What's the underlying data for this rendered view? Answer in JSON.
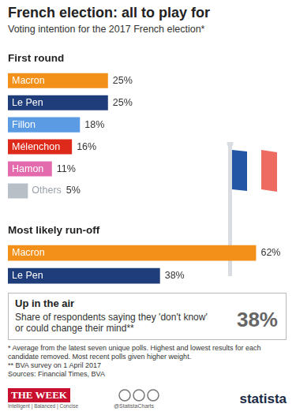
{
  "header": {
    "title": "French election: all to play for",
    "subtitle": "Voting intention for the 2017 French election*"
  },
  "chart_data": [
    {
      "type": "bar",
      "orientation": "horizontal",
      "title": "First round",
      "categories": [
        "Macron",
        "Le Pen",
        "Fillon",
        "Mélenchon",
        "Hamon",
        "Others"
      ],
      "values": [
        25,
        25,
        18,
        16,
        11,
        5
      ],
      "value_labels": [
        "25%",
        "25%",
        "18%",
        "16%",
        "11%",
        "5%"
      ],
      "colors": [
        "#f39019",
        "#1f3d7a",
        "#5a9be3",
        "#dd2a1b",
        "#e46aae",
        "#b9bfc7"
      ],
      "xlim": [
        0,
        70
      ],
      "data_labels": true,
      "tick_labels": false,
      "grid": false
    },
    {
      "type": "bar",
      "orientation": "horizontal",
      "title": "Most likely run-off",
      "categories": [
        "Macron",
        "Le Pen"
      ],
      "values": [
        62,
        38
      ],
      "value_labels": [
        "62%",
        "38%"
      ],
      "colors": [
        "#f39019",
        "#1f3d7a"
      ],
      "xlim": [
        0,
        70
      ],
      "data_labels": true,
      "tick_labels": false,
      "grid": false
    }
  ],
  "callout": {
    "title": "Up in the air",
    "text": "Share of respondents saying they 'don't know' or could change their mind**",
    "value": "38%"
  },
  "footnotes": [
    "* Average from the latest seven unique polls. Highest and lowest results for each candidate removed. Most recent polls given higher weight.",
    "** BVA survey on 1 April 2017",
    "Sources: Financial Times, BVA"
  ],
  "branding": {
    "publisher": "THE WEEK",
    "tagline": "Intelligent | Balanced | Concise",
    "handle": "@StatistaCharts",
    "logo": "statista"
  }
}
